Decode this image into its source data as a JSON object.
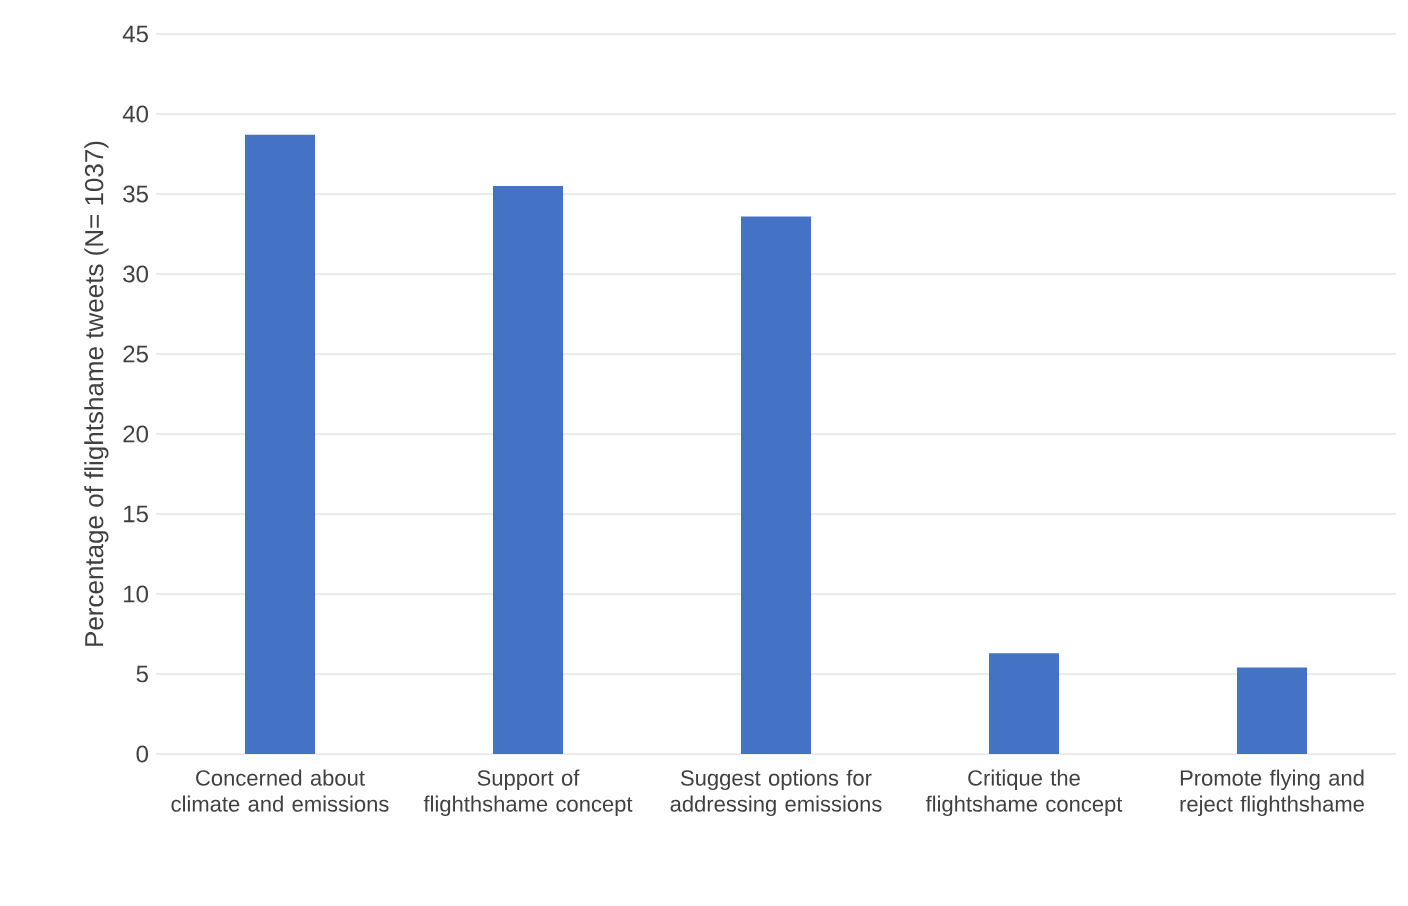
{
  "chart_data": {
    "type": "bar",
    "ylabel": "Percentage of flightshame tweets (N= 1037)",
    "categories": [
      "Concerned about climate and emissions",
      "Support of flighthshame concept",
      "Suggest options for addressing emissions",
      "Critique the flightshame concept",
      "Promote flying and reject flighthshame"
    ],
    "values": [
      38.7,
      35.5,
      33.6,
      6.3,
      5.4
    ],
    "color": "#4472c4",
    "ylim": [
      0,
      45
    ],
    "yticks": [
      0,
      5,
      10,
      15,
      20,
      25,
      30,
      35,
      40,
      45
    ],
    "grid": "y"
  }
}
